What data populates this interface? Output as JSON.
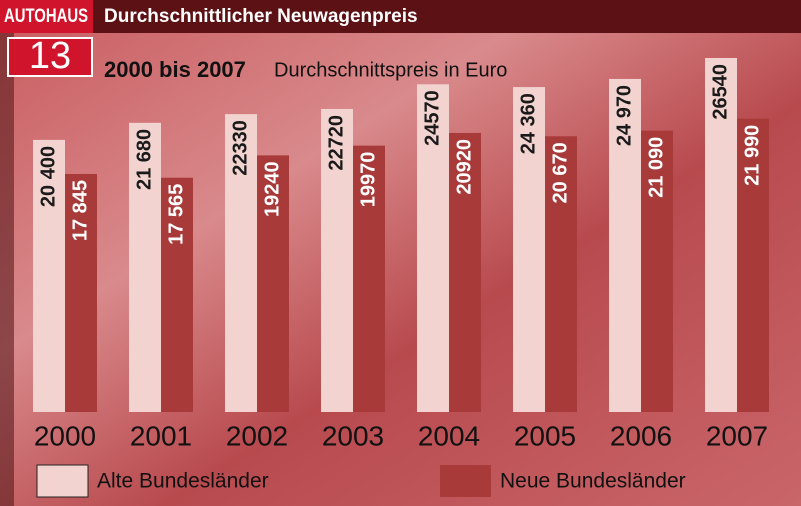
{
  "header": {
    "brand": "AUTOHAUS",
    "title": "Durchschnittlicher Neuwagenpreis",
    "number": "13"
  },
  "chart_data": {
    "type": "bar",
    "title": "2000 bis 2007",
    "subtitle": "Durchschnittspreis in Euro",
    "categories": [
      "2000",
      "2001",
      "2002",
      "2003",
      "2004",
      "2005",
      "2006",
      "2007"
    ],
    "series": [
      {
        "name": "Alte Bundesländer",
        "color": "#f2d3cf",
        "values": [
          20400,
          21680,
          22330,
          22720,
          24570,
          24360,
          24970,
          26540
        ],
        "value_labels": [
          "20 400",
          "21 680",
          "22330",
          "22720",
          "24570",
          "24 360",
          "24 970",
          "26540"
        ]
      },
      {
        "name": "Neue Bundesländer",
        "color": "#a83a3a",
        "values": [
          17845,
          17565,
          19240,
          19970,
          20920,
          20670,
          21090,
          21990
        ],
        "value_labels": [
          "17 845",
          "17 565",
          "19240",
          "19970",
          "20920",
          "20 670",
          "21 090",
          "21 990"
        ]
      }
    ]
  }
}
